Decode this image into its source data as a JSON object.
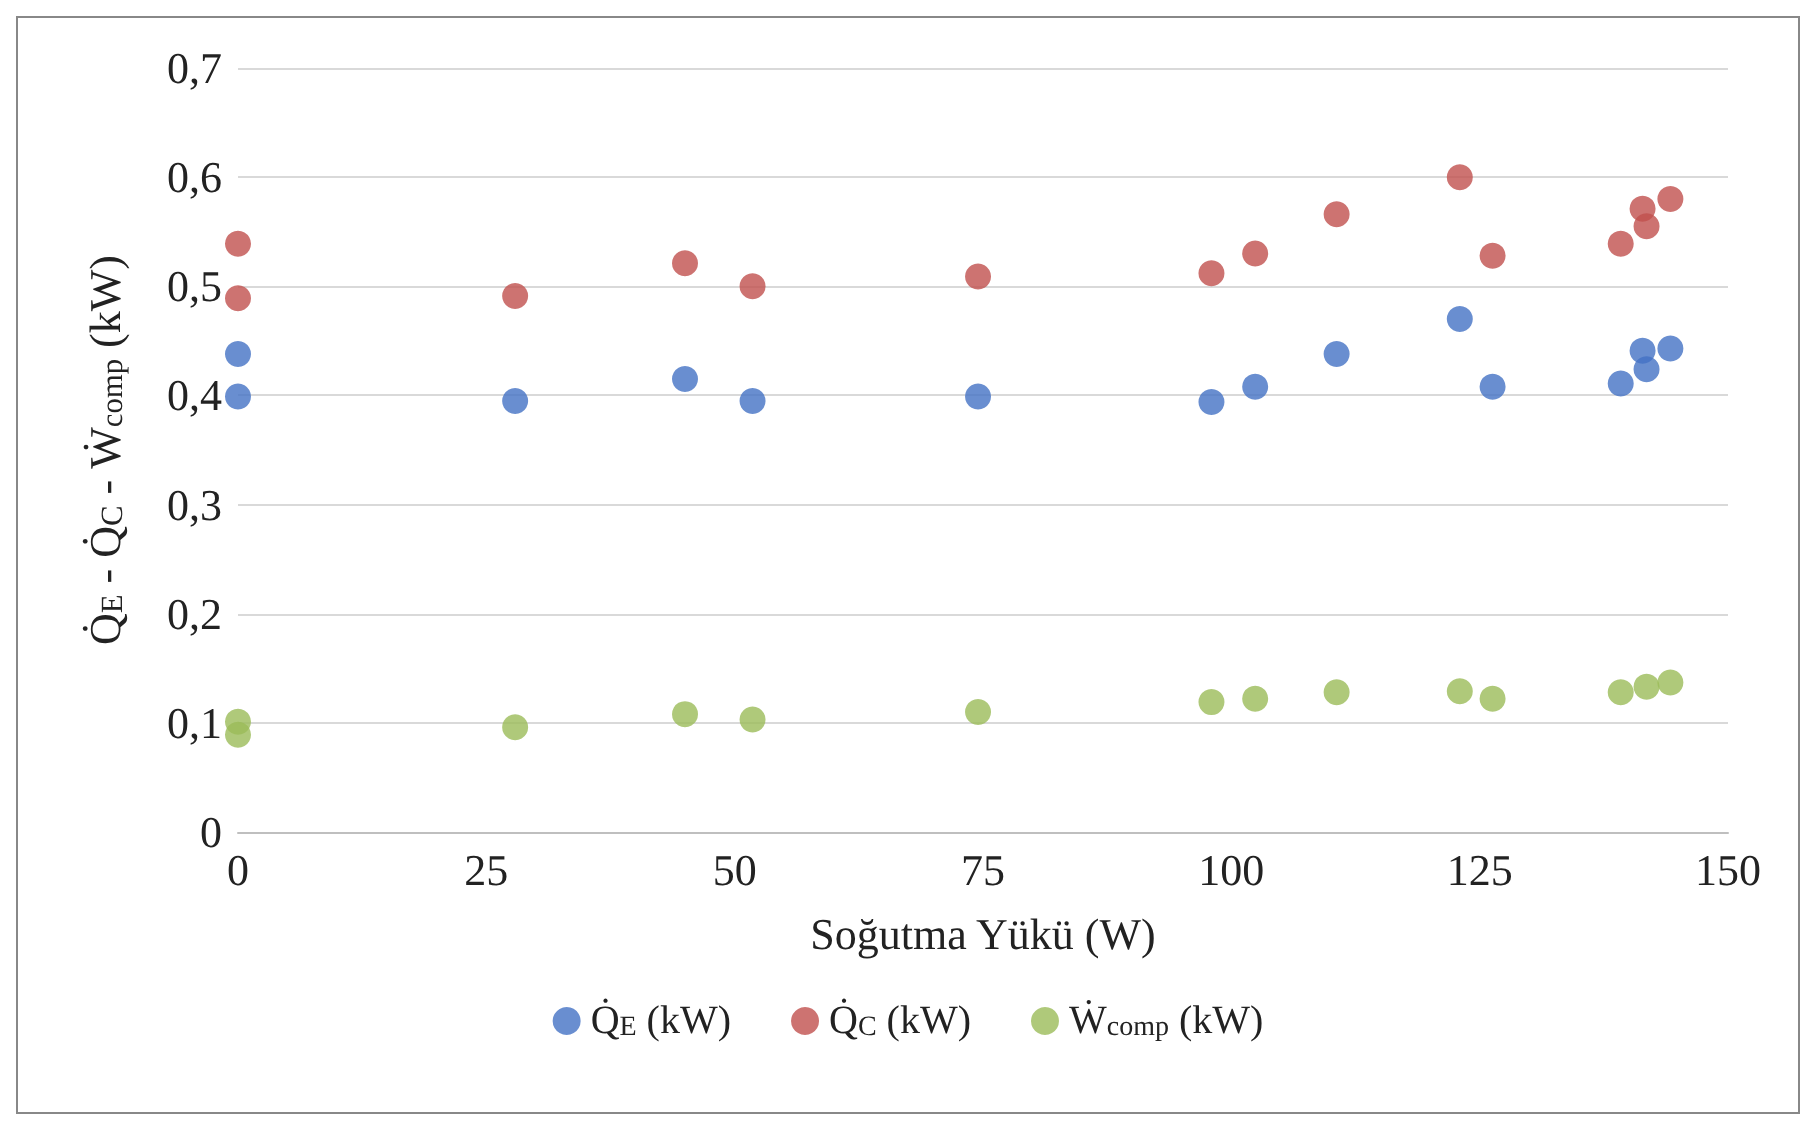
{
  "chart_data": {
    "type": "scatter",
    "xlabel": "Soğutma Yükü (W)",
    "ylabel": "Q̇$_{E}$ - Q̇$_{C}$ - Ẇ$_{comp}$ (kW)",
    "x": [
      0,
      0,
      27.9,
      45,
      51.8,
      74.5,
      98,
      102.4,
      110.6,
      123,
      126.3,
      139.2,
      141.4,
      141.8,
      144.2
    ],
    "series": [
      {
        "name": "Q̇$_{E}$ (kW)",
        "color": "#4472c4",
        "values": [
          0.399,
          0.438,
          0.395,
          0.415,
          0.395,
          0.399,
          0.394,
          0.408,
          0.438,
          0.47,
          0.408,
          0.411,
          0.441,
          0.424,
          0.443
        ]
      },
      {
        "name": "Q̇$_{C}$ (kW)",
        "color": "#c0504d",
        "values": [
          0.539,
          0.489,
          0.491,
          0.521,
          0.5,
          0.509,
          0.512,
          0.53,
          0.566,
          0.6,
          0.528,
          0.539,
          0.571,
          0.555,
          0.58
        ]
      },
      {
        "name": "Ẇ$_{comp}$ (kW)",
        "color": "#9bbb59",
        "values": [
          0.101,
          0.089,
          0.096,
          0.108,
          0.103,
          0.11,
          0.119,
          0.122,
          0.128,
          0.129,
          0.122,
          0.128,
          null,
          0.133,
          0.137
        ]
      }
    ],
    "xlim": [
      0,
      150
    ],
    "xticks": [
      0,
      25,
      50,
      75,
      100,
      125,
      150
    ],
    "ylim": [
      0,
      0.7
    ],
    "yticks": [
      0,
      {
        "value": 0.1,
        "label": "0,1"
      },
      {
        "value": 0.2,
        "label": "0,2"
      },
      {
        "value": 0.3,
        "label": "0,3"
      },
      {
        "value": 0.4,
        "label": "0,4"
      },
      {
        "value": 0.5,
        "label": "0,5"
      },
      {
        "value": 0.6,
        "label": "0,6"
      },
      {
        "value": 0.7,
        "label": "0,7"
      }
    ],
    "grid": "y",
    "legend": "bottom",
    "marker": "circle"
  }
}
